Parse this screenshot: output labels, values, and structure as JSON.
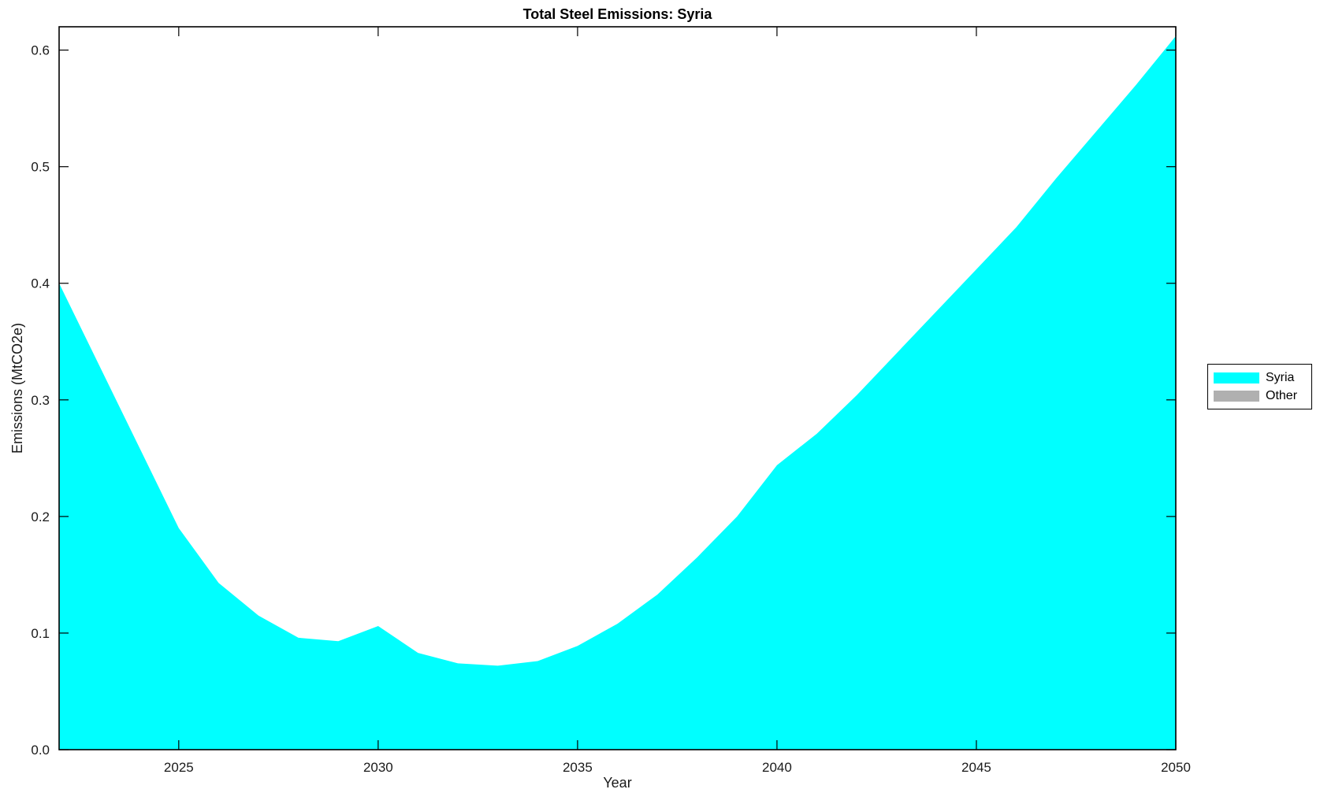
{
  "title": "Total Steel Emissions: Syria",
  "axes": {
    "xlabel": "Year",
    "ylabel": "Emissions (MtCO2e)"
  },
  "legend": {
    "items": [
      {
        "label": "Syria",
        "color": "#00FFFF"
      },
      {
        "label": "Other",
        "color": "#B0B0B0"
      }
    ]
  },
  "colors": {
    "syria_fill": "#00FFFF",
    "other_fill": "#B0B0B0",
    "axis": "#000000",
    "background": "#FFFFFF"
  },
  "chart_data": {
    "type": "area",
    "title": "Total Steel Emissions: Syria",
    "xlabel": "Year",
    "ylabel": "Emissions (MtCO2e)",
    "x": [
      2022,
      2023,
      2024,
      2025,
      2026,
      2027,
      2028,
      2029,
      2030,
      2031,
      2032,
      2033,
      2034,
      2035,
      2036,
      2037,
      2038,
      2039,
      2040,
      2041,
      2042,
      2043,
      2044,
      2045,
      2046,
      2047,
      2048,
      2049,
      2050
    ],
    "series": [
      {
        "name": "Syria",
        "color": "#00FFFF",
        "values": [
          0.4,
          0.33,
          0.26,
          0.19,
          0.143,
          0.115,
          0.096,
          0.093,
          0.106,
          0.083,
          0.074,
          0.072,
          0.076,
          0.089,
          0.108,
          0.133,
          0.165,
          0.2,
          0.244,
          0.271,
          0.304,
          0.34,
          0.376,
          0.412,
          0.448,
          0.49,
          0.53,
          0.57,
          0.612
        ]
      },
      {
        "name": "Other",
        "color": "#B0B0B0",
        "values": [
          0,
          0,
          0,
          0,
          0,
          0,
          0,
          0,
          0,
          0,
          0,
          0,
          0,
          0,
          0,
          0,
          0,
          0,
          0,
          0,
          0,
          0,
          0,
          0,
          0,
          0,
          0,
          0,
          0
        ]
      }
    ],
    "xlim": [
      2022,
      2050
    ],
    "ylim": [
      0,
      0.62
    ],
    "xticks": [
      2025,
      2030,
      2035,
      2040,
      2045,
      2050
    ],
    "yticks": [
      "0.0",
      "0.1",
      "0.2",
      "0.3",
      "0.4",
      "0.5",
      "0.6"
    ],
    "grid": false,
    "legend_position": "outside-right"
  }
}
